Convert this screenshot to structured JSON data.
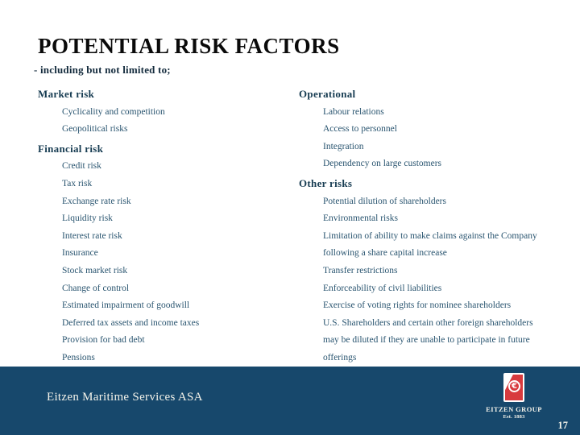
{
  "title": "POTENTIAL RISK FACTORS",
  "subtitle": "- including but not limited to;",
  "columns": [
    {
      "side": "left",
      "rows": [
        {
          "type": "header",
          "label": "Market risk"
        },
        {
          "type": "item",
          "label": "Cyclicality and competition"
        },
        {
          "type": "item",
          "label": "Geopolitical risks"
        },
        {
          "type": "header",
          "label": "Financial risk"
        },
        {
          "type": "item",
          "label": "Credit risk"
        },
        {
          "type": "item",
          "label": "Tax risk"
        },
        {
          "type": "item",
          "label": "Exchange rate risk"
        },
        {
          "type": "item",
          "label": "Liquidity risk"
        },
        {
          "type": "item",
          "label": "Interest rate risk"
        },
        {
          "type": "item",
          "label": "Insurance"
        },
        {
          "type": "item",
          "label": "Stock market risk"
        },
        {
          "type": "item",
          "label": "Change of control"
        },
        {
          "type": "item",
          "label": "Estimated impairment of goodwill"
        },
        {
          "type": "item",
          "label": "Deferred tax assets and income taxes"
        },
        {
          "type": "item",
          "label": "Provision for bad debt"
        },
        {
          "type": "item",
          "label": "Pensions"
        }
      ]
    },
    {
      "side": "right",
      "rows": [
        {
          "type": "header",
          "label": "Operational"
        },
        {
          "type": "item",
          "label": "Labour relations"
        },
        {
          "type": "item",
          "label": "Access to personnel"
        },
        {
          "type": "item",
          "label": "Integration"
        },
        {
          "type": "item",
          "label": "Dependency on large customers"
        },
        {
          "type": "header",
          "label": "Other risks"
        },
        {
          "type": "item",
          "label": "Potential dilution of shareholders"
        },
        {
          "type": "item",
          "label": "Environmental risks"
        },
        {
          "type": "item",
          "label": "Limitation of ability to make claims against the Company"
        },
        {
          "type": "item",
          "label": "following a share capital increase"
        },
        {
          "type": "item",
          "label": "Transfer restrictions"
        },
        {
          "type": "item",
          "label": "Enforceability of civil liabilities"
        },
        {
          "type": "item",
          "label": "Exercise of voting rights for nominee shareholders"
        },
        {
          "type": "item",
          "label": "U.S. Shareholders and certain other foreign shareholders"
        },
        {
          "type": "item",
          "label": "may be diluted if they are unable to participate in future"
        },
        {
          "type": "item",
          "label": "offerings"
        }
      ]
    }
  ],
  "footer": {
    "company": "Eitzen Maritime Services ASA"
  },
  "logo": {
    "brand": "EITZEN GROUP",
    "established": "Est. 1883",
    "symbol": "€"
  },
  "page_number": "17",
  "colors": {
    "footer_bg": "#17486c",
    "logo_red": "#d83a3e",
    "title_text": "#0a0a0a",
    "header_text": "#173c52",
    "item_text": "#2a5570",
    "footer_text": "#f4f3ea"
  }
}
